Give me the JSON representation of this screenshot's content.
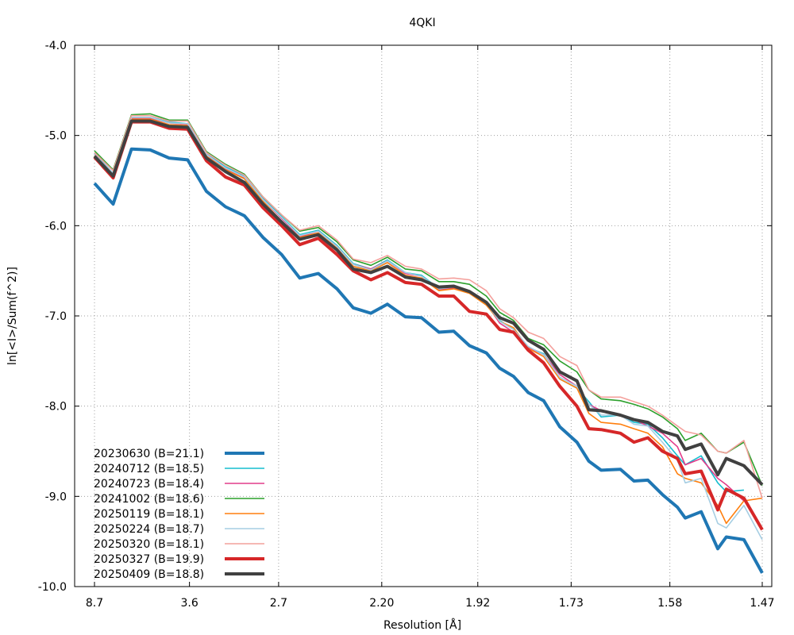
{
  "chart_data": {
    "type": "line",
    "title": "4QKI",
    "xlabel": "Resolution [Å]",
    "ylabel": "ln[<I>/Sum(f^2)]",
    "xaxis_scale": "1/d^2",
    "x_ticks": [
      "8.7",
      "3.6",
      "2.7",
      "2.20",
      "1.92",
      "1.73",
      "1.58",
      "1.47"
    ],
    "ylim": [
      -10.0,
      -4.0
    ],
    "y_ticks": [
      "-4.0",
      "-5.0",
      "-6.0",
      "-7.0",
      "-8.0",
      "-9.0",
      "-10.0"
    ],
    "y_tick_values": [
      -4.0,
      -5.0,
      -6.0,
      -7.0,
      -8.0,
      -9.0,
      -10.0
    ],
    "grid": true,
    "legend_position": "bottom-left",
    "series": [
      {
        "name": "20230630 (B=21.1)",
        "color": "#1f77b4",
        "x": [
          8.7,
          6.23,
          5.12,
          4.44,
          3.97,
          3.63,
          3.36,
          3.14,
          2.96,
          2.81,
          2.68,
          2.57,
          2.47,
          2.38,
          2.31,
          2.24,
          2.18,
          2.12,
          2.07,
          2.02,
          1.98,
          1.94,
          1.9,
          1.87,
          1.84,
          1.81,
          1.78,
          1.75,
          1.72,
          1.7,
          1.68,
          1.65,
          1.63,
          1.61,
          1.59,
          1.57,
          1.56,
          1.54,
          1.52,
          1.51,
          1.49,
          1.47
        ],
        "y": [
          -5.53,
          -5.76,
          -5.15,
          -5.16,
          -5.25,
          -5.27,
          -5.62,
          -5.79,
          -5.89,
          -6.13,
          -6.32,
          -6.58,
          -6.53,
          -6.7,
          -6.91,
          -6.97,
          -6.87,
          -7.01,
          -7.02,
          -7.18,
          -7.17,
          -7.33,
          -7.41,
          -7.58,
          -7.67,
          -7.85,
          -7.94,
          -8.23,
          -8.4,
          -8.61,
          -8.71,
          -8.7,
          -8.83,
          -8.82,
          -8.98,
          -9.12,
          -9.24,
          -9.17,
          -9.58,
          -9.45,
          -9.48,
          -9.85
        ]
      },
      {
        "name": "20240712 (B=18.5)",
        "color": "#17becf",
        "x": [
          8.7,
          6.23,
          5.12,
          4.44,
          3.97,
          3.63,
          3.36,
          3.14,
          2.96,
          2.81,
          2.68,
          2.57,
          2.47,
          2.38,
          2.31,
          2.24,
          2.18,
          2.12,
          2.07,
          2.02,
          1.98,
          1.94,
          1.9,
          1.87,
          1.84,
          1.81,
          1.78,
          1.75,
          1.72,
          1.7,
          1.68,
          1.65,
          1.63,
          1.61,
          1.59,
          1.57,
          1.56,
          1.54,
          1.52,
          1.51,
          1.49
        ],
        "y": [
          -5.2,
          -5.42,
          -4.8,
          -4.8,
          -4.85,
          -4.87,
          -5.2,
          -5.35,
          -5.45,
          -5.7,
          -5.9,
          -6.1,
          -6.05,
          -6.22,
          -6.42,
          -6.48,
          -6.38,
          -6.52,
          -6.55,
          -6.7,
          -6.68,
          -6.72,
          -6.85,
          -7.05,
          -7.15,
          -7.35,
          -7.42,
          -7.7,
          -7.8,
          -7.95,
          -8.12,
          -8.1,
          -8.18,
          -8.2,
          -8.35,
          -8.55,
          -8.65,
          -8.55,
          -8.85,
          -8.95,
          -8.93
        ]
      },
      {
        "name": "20240723 (B=18.4)",
        "color": "#e23b8a",
        "x": [
          8.7,
          6.23,
          5.12,
          4.44,
          3.97,
          3.63,
          3.36,
          3.14,
          2.96,
          2.81,
          2.68,
          2.57,
          2.47,
          2.38,
          2.31,
          2.24,
          2.18,
          2.12,
          2.07,
          2.02,
          1.98,
          1.94,
          1.9,
          1.87,
          1.84,
          1.81,
          1.78,
          1.75,
          1.72,
          1.7,
          1.68,
          1.65,
          1.63,
          1.61,
          1.59,
          1.57,
          1.56,
          1.54,
          1.52,
          1.51,
          1.49
        ],
        "y": [
          -5.21,
          -5.43,
          -4.81,
          -4.81,
          -4.86,
          -4.88,
          -5.21,
          -5.37,
          -5.47,
          -5.71,
          -5.92,
          -6.12,
          -6.06,
          -6.23,
          -6.43,
          -6.48,
          -6.39,
          -6.53,
          -6.56,
          -6.71,
          -6.69,
          -6.73,
          -6.86,
          -7.08,
          -7.18,
          -7.35,
          -7.43,
          -7.65,
          -7.78,
          -7.98,
          -8.05,
          -8.1,
          -8.15,
          -8.22,
          -8.3,
          -8.45,
          -8.65,
          -8.58,
          -8.8,
          -8.87,
          -9.05
        ]
      },
      {
        "name": "20241002 (B=18.6)",
        "color": "#2ca02c",
        "x": [
          8.7,
          6.23,
          5.12,
          4.44,
          3.97,
          3.63,
          3.36,
          3.14,
          2.96,
          2.81,
          2.68,
          2.57,
          2.47,
          2.38,
          2.31,
          2.24,
          2.18,
          2.12,
          2.07,
          2.02,
          1.98,
          1.94,
          1.9,
          1.87,
          1.84,
          1.81,
          1.78,
          1.75,
          1.72,
          1.7,
          1.68,
          1.65,
          1.63,
          1.61,
          1.59,
          1.57,
          1.56,
          1.54,
          1.52,
          1.51,
          1.49,
          1.47
        ],
        "y": [
          -5.17,
          -5.38,
          -4.77,
          -4.76,
          -4.83,
          -4.83,
          -5.18,
          -5.32,
          -5.43,
          -5.68,
          -5.88,
          -6.06,
          -6.02,
          -6.18,
          -6.38,
          -6.44,
          -6.35,
          -6.48,
          -6.5,
          -6.62,
          -6.62,
          -6.65,
          -6.78,
          -6.96,
          -7.05,
          -7.25,
          -7.32,
          -7.5,
          -7.62,
          -7.82,
          -7.92,
          -7.94,
          -7.98,
          -8.03,
          -8.12,
          -8.25,
          -8.38,
          -8.3,
          -8.5,
          -8.52,
          -8.4,
          -8.88
        ]
      },
      {
        "name": "20250119 (B=18.1)",
        "color": "#ff7f0e",
        "x": [
          8.7,
          6.23,
          5.12,
          4.44,
          3.97,
          3.63,
          3.36,
          3.14,
          2.96,
          2.81,
          2.68,
          2.57,
          2.47,
          2.38,
          2.31,
          2.24,
          2.18,
          2.12,
          2.07,
          2.02,
          1.98,
          1.94,
          1.9,
          1.87,
          1.84,
          1.81,
          1.78,
          1.75,
          1.72,
          1.7,
          1.68,
          1.65,
          1.63,
          1.61,
          1.59,
          1.57,
          1.56,
          1.54,
          1.52,
          1.51,
          1.49,
          1.47
        ],
        "y": [
          -5.22,
          -5.44,
          -4.82,
          -4.82,
          -4.88,
          -4.89,
          -5.23,
          -5.38,
          -5.48,
          -5.73,
          -5.95,
          -6.13,
          -6.08,
          -6.25,
          -6.45,
          -6.5,
          -6.41,
          -6.55,
          -6.58,
          -6.72,
          -6.7,
          -6.75,
          -6.88,
          -7.06,
          -7.13,
          -7.36,
          -7.45,
          -7.7,
          -7.8,
          -8.08,
          -8.18,
          -8.2,
          -8.25,
          -8.3,
          -8.45,
          -8.75,
          -8.8,
          -8.85,
          -9.1,
          -9.3,
          -9.05,
          -9.02
        ]
      },
      {
        "name": "20250224 (B=18.7)",
        "color": "#a6cee3",
        "x": [
          8.7,
          6.23,
          5.12,
          4.44,
          3.97,
          3.63,
          3.36,
          3.14,
          2.96,
          2.81,
          2.68,
          2.57,
          2.47,
          2.38,
          2.31,
          2.24,
          2.18,
          2.12,
          2.07,
          2.02,
          1.98,
          1.94,
          1.9,
          1.87,
          1.84,
          1.81,
          1.78,
          1.75,
          1.72,
          1.7,
          1.68,
          1.65,
          1.63,
          1.61,
          1.59,
          1.57,
          1.56,
          1.54,
          1.52,
          1.51,
          1.49,
          1.47
        ],
        "y": [
          -5.21,
          -5.42,
          -4.8,
          -4.8,
          -4.86,
          -4.87,
          -5.21,
          -5.36,
          -5.46,
          -5.71,
          -5.91,
          -6.11,
          -6.06,
          -6.23,
          -6.43,
          -6.49,
          -6.39,
          -6.52,
          -6.56,
          -6.7,
          -6.68,
          -6.73,
          -6.86,
          -7.06,
          -7.15,
          -7.34,
          -7.43,
          -7.68,
          -7.78,
          -7.98,
          -8.1,
          -8.1,
          -8.2,
          -8.22,
          -8.4,
          -8.6,
          -8.85,
          -8.8,
          -9.3,
          -9.35,
          -9.1,
          -9.48
        ]
      },
      {
        "name": "20250320 (B=18.1)",
        "color": "#f4a09c",
        "x": [
          8.7,
          6.23,
          5.12,
          4.44,
          3.97,
          3.63,
          3.36,
          3.14,
          2.96,
          2.81,
          2.68,
          2.57,
          2.47,
          2.38,
          2.31,
          2.24,
          2.18,
          2.12,
          2.07,
          2.02,
          1.98,
          1.94,
          1.9,
          1.87,
          1.84,
          1.81,
          1.78,
          1.75,
          1.72,
          1.7,
          1.68,
          1.65,
          1.63,
          1.61,
          1.59,
          1.57,
          1.56,
          1.54,
          1.52,
          1.51,
          1.49,
          1.47
        ],
        "y": [
          -5.19,
          -5.39,
          -4.78,
          -4.78,
          -4.84,
          -4.84,
          -5.19,
          -5.33,
          -5.44,
          -5.68,
          -5.88,
          -6.05,
          -6.0,
          -6.16,
          -6.37,
          -6.41,
          -6.33,
          -6.45,
          -6.48,
          -6.59,
          -6.58,
          -6.6,
          -6.72,
          -6.92,
          -7.02,
          -7.18,
          -7.25,
          -7.45,
          -7.55,
          -7.82,
          -7.9,
          -7.9,
          -7.95,
          -8.0,
          -8.1,
          -8.22,
          -8.28,
          -8.32,
          -8.5,
          -8.52,
          -8.38,
          -9.02
        ]
      },
      {
        "name": "20250327 (B=19.9)",
        "color": "#d62728",
        "x": [
          8.7,
          6.23,
          5.12,
          4.44,
          3.97,
          3.63,
          3.36,
          3.14,
          2.96,
          2.81,
          2.68,
          2.57,
          2.47,
          2.38,
          2.31,
          2.24,
          2.18,
          2.12,
          2.07,
          2.02,
          1.98,
          1.94,
          1.9,
          1.87,
          1.84,
          1.81,
          1.78,
          1.75,
          1.72,
          1.7,
          1.68,
          1.65,
          1.63,
          1.61,
          1.59,
          1.57,
          1.56,
          1.54,
          1.52,
          1.51,
          1.49,
          1.47
        ],
        "y": [
          -5.24,
          -5.47,
          -4.85,
          -4.85,
          -4.92,
          -4.93,
          -5.28,
          -5.46,
          -5.55,
          -5.8,
          -6.0,
          -6.21,
          -6.14,
          -6.32,
          -6.5,
          -6.6,
          -6.52,
          -6.63,
          -6.65,
          -6.78,
          -6.78,
          -6.95,
          -6.98,
          -7.15,
          -7.18,
          -7.38,
          -7.52,
          -7.78,
          -8.0,
          -8.25,
          -8.26,
          -8.3,
          -8.4,
          -8.35,
          -8.5,
          -8.58,
          -8.75,
          -8.72,
          -9.15,
          -8.92,
          -9.02,
          -9.37
        ]
      },
      {
        "name": "20250409 (B=18.8)",
        "color": "#404040",
        "x": [
          8.7,
          6.23,
          5.12,
          4.44,
          3.97,
          3.63,
          3.36,
          3.14,
          2.96,
          2.81,
          2.68,
          2.57,
          2.47,
          2.38,
          2.31,
          2.24,
          2.18,
          2.12,
          2.07,
          2.02,
          1.98,
          1.94,
          1.9,
          1.87,
          1.84,
          1.81,
          1.78,
          1.75,
          1.72,
          1.7,
          1.68,
          1.65,
          1.63,
          1.61,
          1.59,
          1.57,
          1.56,
          1.54,
          1.52,
          1.51,
          1.49,
          1.47
        ],
        "y": [
          -5.23,
          -5.45,
          -4.84,
          -4.84,
          -4.9,
          -4.91,
          -5.25,
          -5.4,
          -5.52,
          -5.76,
          -5.96,
          -6.15,
          -6.1,
          -6.27,
          -6.48,
          -6.52,
          -6.45,
          -6.57,
          -6.6,
          -6.68,
          -6.67,
          -6.73,
          -6.85,
          -7.02,
          -7.08,
          -7.27,
          -7.37,
          -7.62,
          -7.72,
          -8.04,
          -8.05,
          -8.1,
          -8.15,
          -8.18,
          -8.28,
          -8.33,
          -8.48,
          -8.42,
          -8.76,
          -8.58,
          -8.66,
          -8.87
        ]
      }
    ]
  }
}
